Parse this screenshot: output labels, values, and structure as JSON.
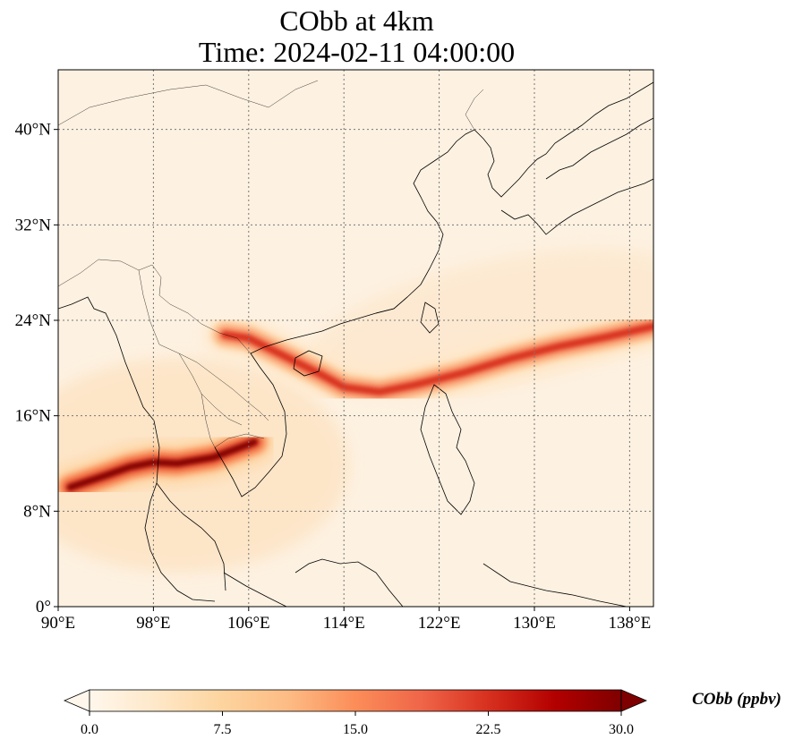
{
  "title": {
    "line1": "CObb at 4km",
    "line2": "Time: 2024-02-11 04:00:00"
  },
  "map": {
    "projection": "PlateCarree",
    "extent": {
      "lon_min": 90,
      "lon_max": 140,
      "lat_min": 0,
      "lat_max": 45
    },
    "gridlines": "dotted",
    "lon_ticks": [
      {
        "value": 90,
        "label": "90°E"
      },
      {
        "value": 98,
        "label": "98°E"
      },
      {
        "value": 106,
        "label": "106°E"
      },
      {
        "value": 114,
        "label": "114°E"
      },
      {
        "value": 122,
        "label": "122°E"
      },
      {
        "value": 130,
        "label": "130°E"
      },
      {
        "value": 138,
        "label": "138°E"
      }
    ],
    "lat_ticks": [
      {
        "value": 0,
        "label": "0°"
      },
      {
        "value": 8,
        "label": "8°N"
      },
      {
        "value": 16,
        "label": "16°N"
      },
      {
        "value": 24,
        "label": "24°N"
      },
      {
        "value": 32,
        "label": "32°N"
      },
      {
        "value": 40,
        "label": "40°N"
      }
    ],
    "plumes": [
      {
        "name": "myanmar-thailand-plume",
        "lon": [
          91,
          94,
          96,
          98,
          100,
          103,
          106.5
        ],
        "lat": [
          10,
          11,
          11.7,
          12.1,
          12,
          12.5,
          13.8
        ],
        "level": 30
      },
      {
        "name": "vietnam-coast-plume",
        "lon": [
          104,
          106,
          109,
          112,
          114,
          117,
          120,
          124,
          128,
          132,
          136,
          140
        ],
        "lat": [
          22.8,
          22.5,
          21,
          19.5,
          18.4,
          18.0,
          18.6,
          19.6,
          20.8,
          21.8,
          22.6,
          23.5
        ],
        "level": 22
      }
    ]
  },
  "colorbar": {
    "min": 0,
    "max": 30,
    "ticks": [
      "0.0",
      "7.5",
      "15.0",
      "22.5",
      "30.0"
    ],
    "extend": "both",
    "cmap": "OrRd",
    "colors": [
      "#fff7ec",
      "#fee8c8",
      "#fdd49e",
      "#fdbb84",
      "#fc8d59",
      "#ef6548",
      "#d7301f",
      "#b30000",
      "#7f0000"
    ],
    "label": "CObb (ppbv)"
  }
}
